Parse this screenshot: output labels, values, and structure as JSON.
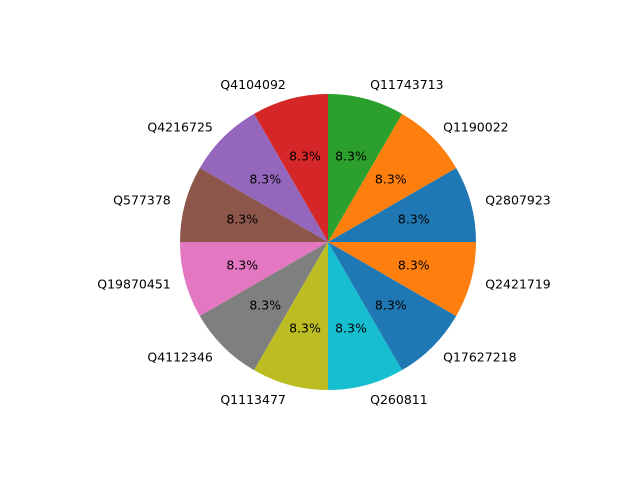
{
  "chart_data": {
    "type": "pie",
    "title": "",
    "start_angle_deg": 0,
    "direction": "counterclockwise",
    "slices": [
      {
        "label": "Q2807923",
        "value": 1,
        "pct": "8.3%",
        "color": "#1f77b4"
      },
      {
        "label": "Q1190022",
        "value": 1,
        "pct": "8.3%",
        "color": "#ff7f0e"
      },
      {
        "label": "Q11743713",
        "value": 1,
        "pct": "8.3%",
        "color": "#2ca02c"
      },
      {
        "label": "Q4104092",
        "value": 1,
        "pct": "8.3%",
        "color": "#d62728"
      },
      {
        "label": "Q4216725",
        "value": 1,
        "pct": "8.3%",
        "color": "#9467bd"
      },
      {
        "label": "Q577378",
        "value": 1,
        "pct": "8.3%",
        "color": "#8c564b"
      },
      {
        "label": "Q19870451",
        "value": 1,
        "pct": "8.3%",
        "color": "#e377c2"
      },
      {
        "label": "Q4112346",
        "value": 1,
        "pct": "8.3%",
        "color": "#7f7f7f"
      },
      {
        "label": "Q1113477",
        "value": 1,
        "pct": "8.3%",
        "color": "#bcbd22"
      },
      {
        "label": "Q260811",
        "value": 1,
        "pct": "8.3%",
        "color": "#17becf"
      },
      {
        "label": "Q17627218",
        "value": 1,
        "pct": "8.3%",
        "color": "#1f77b4"
      },
      {
        "label": "Q2421719",
        "value": 1,
        "pct": "8.3%",
        "color": "#ff7f0e"
      }
    ]
  }
}
